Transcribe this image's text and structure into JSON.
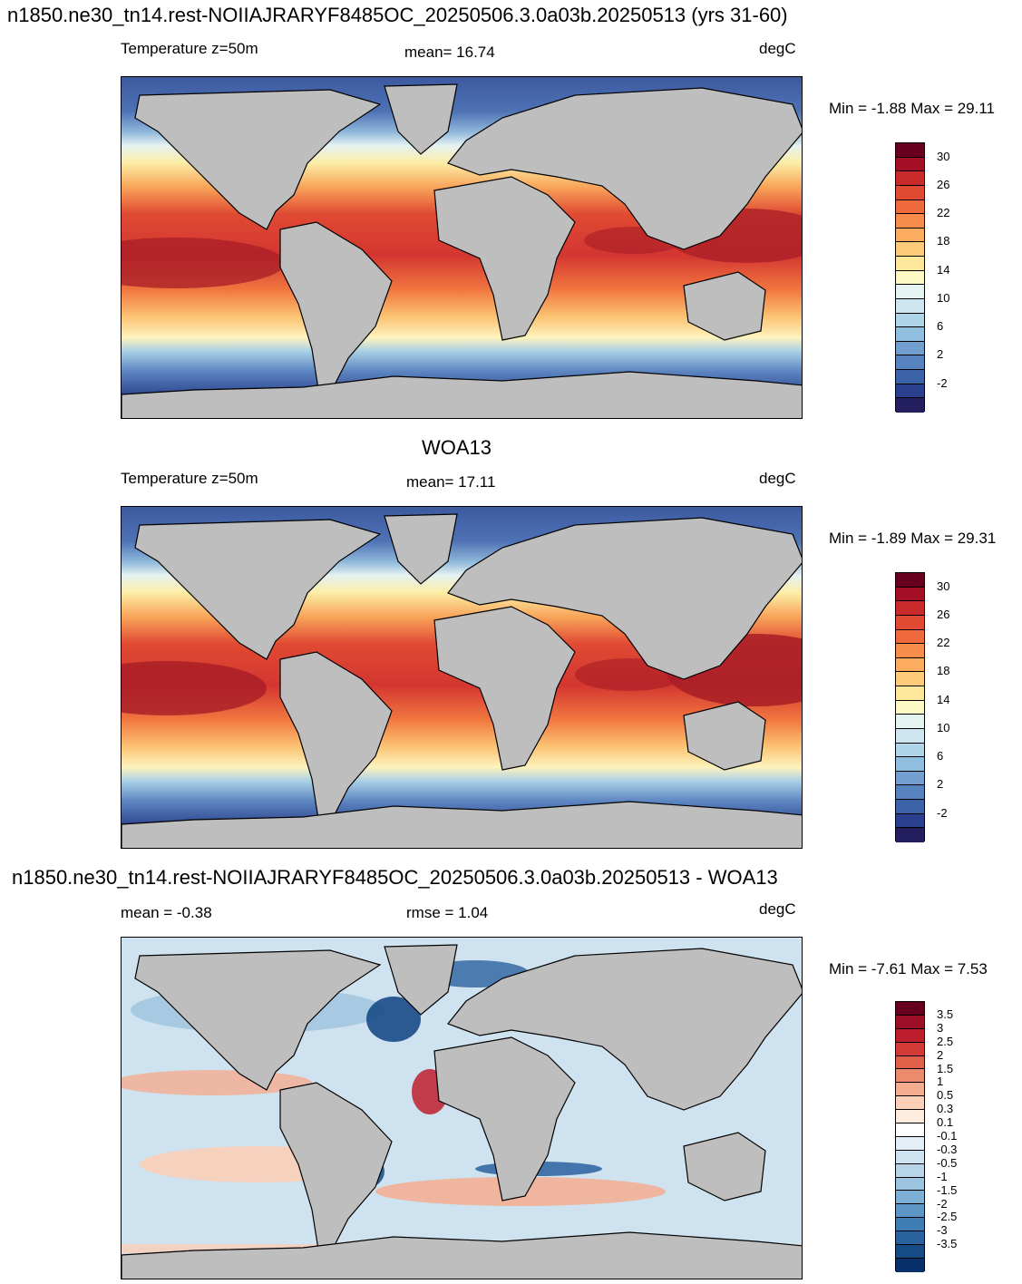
{
  "panels": [
    {
      "title": "n1850.ne30_tn14.rest-NOIIAJRARYF8485OC_20250506.3.0a03b.20250513 (yrs 31-60)",
      "left_label": "Temperature z=50m",
      "center_label": "mean=  16.74",
      "units": "degC",
      "minmax": "Min =  -1.88 Max =  29.11",
      "colorbar": {
        "colors": [
          "#67001f",
          "#a50f26",
          "#c92a2a",
          "#e04a33",
          "#f06a3d",
          "#f78c4c",
          "#fbac5f",
          "#fdcb7a",
          "#fde79a",
          "#fdf9c4",
          "#e6f4f1",
          "#cde6f0",
          "#b0d5e8",
          "#90bedf",
          "#729fcf",
          "#5682bf",
          "#3c63a8",
          "#2b3f8f",
          "#231e5e"
        ],
        "ticks": [
          "30",
          "26",
          "22",
          "18",
          "14",
          "10",
          "6",
          "2",
          "-2"
        ]
      }
    },
    {
      "title": "WOA13",
      "left_label": "Temperature z=50m",
      "center_label": "mean=  17.11",
      "units": "degC",
      "minmax": "Min =  -1.89 Max =  29.31",
      "colorbar": {
        "colors": [
          "#67001f",
          "#a50f26",
          "#c92a2a",
          "#e04a33",
          "#f06a3d",
          "#f78c4c",
          "#fbac5f",
          "#fdcb7a",
          "#fde79a",
          "#fdf9c4",
          "#e6f4f1",
          "#cde6f0",
          "#b0d5e8",
          "#90bedf",
          "#729fcf",
          "#5682bf",
          "#3c63a8",
          "#2b3f8f",
          "#231e5e"
        ],
        "ticks": [
          "30",
          "26",
          "22",
          "18",
          "14",
          "10",
          "6",
          "2",
          "-2"
        ]
      }
    },
    {
      "title": "n1850.ne30_tn14.rest-NOIIAJRARYF8485OC_20250506.3.0a03b.20250513 - WOA13",
      "left_label": "mean =  -0.38",
      "center_label": "rmse =   1.04",
      "units": "degC",
      "minmax": "Min =  -7.61 Max =    7.53",
      "colorbar": {
        "colors": [
          "#67001f",
          "#9d0f26",
          "#bd1e2e",
          "#d23a36",
          "#e0604a",
          "#ec8a6c",
          "#f5ad90",
          "#fad0b8",
          "#fdebdd",
          "#ffffff",
          "#e3eef6",
          "#cfe2ef",
          "#b8d4e8",
          "#9cc3df",
          "#7eb0d5",
          "#5e97c6",
          "#417db5",
          "#2a62a0",
          "#174b86",
          "#08306b"
        ],
        "ticks": [
          "3.5",
          "3",
          "2.5",
          "2",
          "1.5",
          "1",
          "0.5",
          "0.3",
          "0.1",
          "-0.1",
          "-0.3",
          "-0.5",
          "-1",
          "-1.5",
          "-2",
          "-2.5",
          "-3",
          "-3.5"
        ]
      }
    }
  ]
}
